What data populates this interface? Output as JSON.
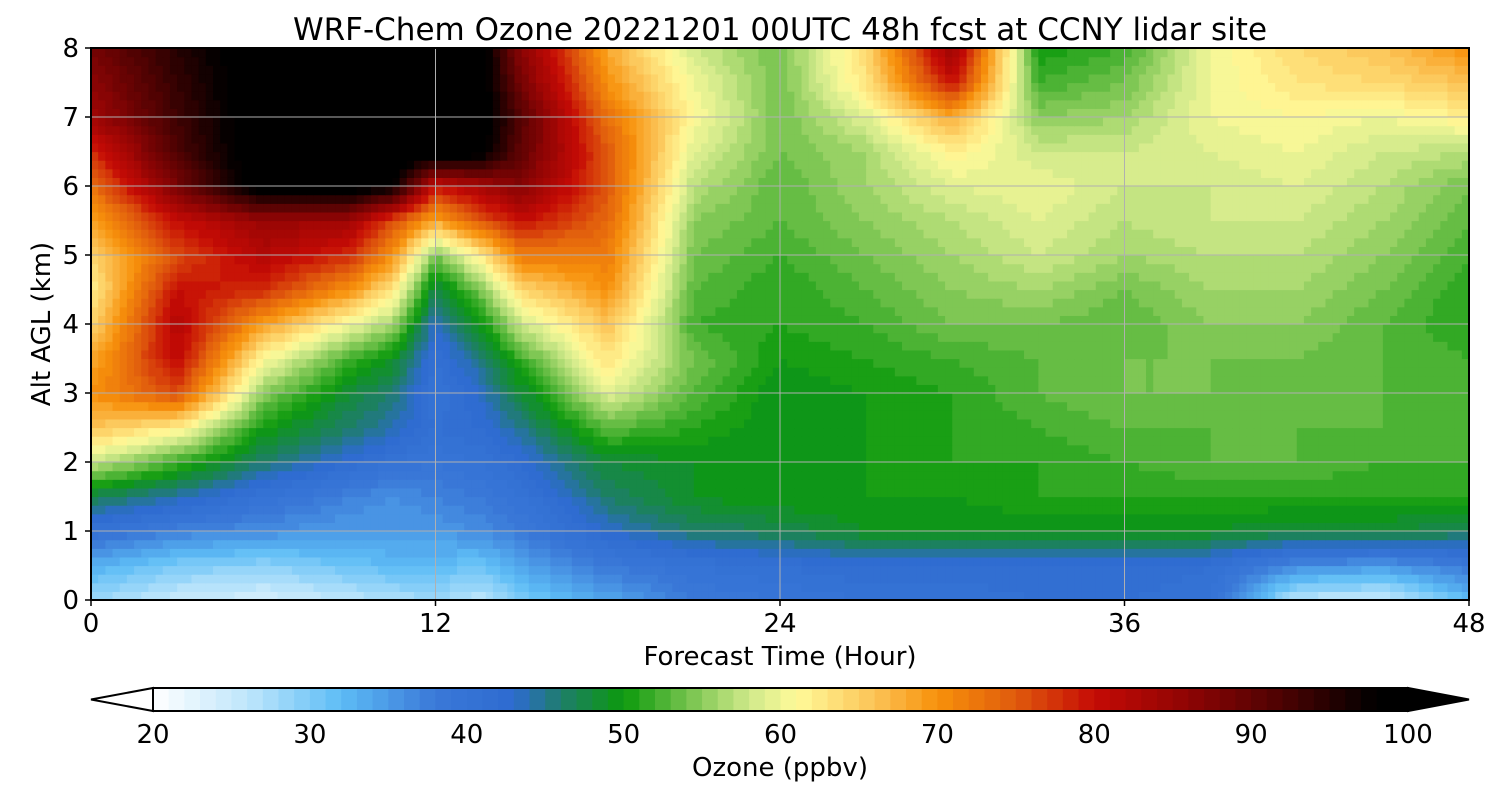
{
  "chart_data": {
    "type": "heatmap",
    "title": "WRF-Chem Ozone  20221201 00UTC 48h fcst at CCNY lidar site",
    "xlabel": "Forecast Time (Hour)",
    "ylabel": "Alt AGL (km)",
    "xlim": [
      0,
      48
    ],
    "ylim": [
      0,
      8
    ],
    "x_ticks": [
      0,
      12,
      24,
      36,
      48
    ],
    "y_ticks": [
      0,
      1,
      2,
      3,
      4,
      5,
      6,
      7,
      8
    ],
    "grid": true,
    "x": [
      0,
      3,
      6,
      9,
      10.5,
      12,
      13.5,
      15,
      18,
      21,
      24,
      27,
      30,
      33,
      36,
      39,
      42,
      45,
      48
    ],
    "y": [
      0,
      0.5,
      1,
      1.5,
      2,
      2.5,
      3,
      3.5,
      4,
      4.5,
      5,
      5.5,
      6,
      6.5,
      7,
      7.5,
      8
    ],
    "z": [
      [
        28,
        25,
        24,
        26,
        27,
        28,
        26,
        30,
        34,
        38,
        39,
        40,
        40,
        41,
        41,
        40,
        26,
        25,
        32
      ],
      [
        33,
        30,
        29,
        31,
        32,
        32,
        31,
        34,
        38,
        40,
        41,
        42,
        42,
        42,
        42,
        41,
        36,
        35,
        38
      ],
      [
        40,
        37,
        36,
        35,
        35,
        35,
        36,
        38,
        43,
        46,
        47,
        49,
        49,
        49,
        49,
        49,
        48,
        48,
        47
      ],
      [
        47,
        44,
        40,
        37,
        36,
        37,
        38,
        40,
        46,
        49,
        50,
        50,
        50,
        51,
        51,
        51,
        51,
        51,
        51
      ],
      [
        58,
        52,
        46,
        42,
        40,
        39,
        40,
        42,
        48,
        49,
        49,
        50,
        51,
        51,
        52,
        53,
        53,
        52,
        52
      ],
      [
        66,
        62,
        50,
        46,
        44,
        41,
        42,
        45,
        53,
        51,
        49,
        50,
        51,
        52,
        53,
        53,
        53,
        53,
        52
      ],
      [
        70,
        76,
        55,
        48,
        46,
        40,
        43,
        48,
        59,
        53,
        49,
        50,
        51,
        53,
        54,
        54,
        53,
        53,
        52
      ],
      [
        68,
        81,
        61,
        52,
        49,
        41,
        45,
        52,
        63,
        54,
        50,
        51,
        52,
        53,
        54,
        54,
        54,
        53,
        52
      ],
      [
        64,
        82,
        69,
        60,
        56,
        43,
        49,
        58,
        66,
        52,
        51,
        52,
        54,
        54,
        53,
        55,
        55,
        53,
        51
      ],
      [
        62,
        80,
        78,
        70,
        63,
        47,
        54,
        64,
        70,
        53,
        51,
        53,
        55,
        56,
        54,
        56,
        56,
        54,
        51
      ],
      [
        64,
        76,
        82,
        78,
        70,
        54,
        62,
        72,
        72,
        54,
        52,
        54,
        56,
        58,
        56,
        57,
        57,
        55,
        52
      ],
      [
        68,
        80,
        85,
        84,
        76,
        68,
        75,
        80,
        74,
        55,
        53,
        55,
        57,
        59,
        57,
        58,
        58,
        56,
        53
      ],
      [
        73,
        88,
        101,
        101,
        98,
        80,
        83,
        87,
        75,
        57,
        53,
        56,
        59,
        60,
        58,
        58,
        59,
        57,
        54
      ],
      [
        78,
        92,
        101,
        101,
        101,
        101,
        100,
        90,
        75,
        59,
        54,
        56,
        62,
        58,
        58,
        59,
        60,
        58,
        57
      ],
      [
        84,
        93,
        101,
        101,
        101,
        101,
        101,
        91,
        73,
        61,
        54,
        59,
        68,
        55,
        56,
        60,
        61,
        60,
        62
      ],
      [
        86,
        94,
        101,
        101,
        101,
        101,
        101,
        88,
        70,
        60,
        54,
        63,
        80,
        52,
        54,
        60,
        63,
        64,
        66
      ],
      [
        88,
        95,
        101,
        101,
        101,
        101,
        101,
        86,
        68,
        58,
        54,
        64,
        85,
        50,
        52,
        60,
        64,
        66,
        70
      ]
    ],
    "colorbar": {
      "label": "Ozone  (ppbv)",
      "min": 20,
      "max": 100,
      "step": 1,
      "extend": "both",
      "ticks": [
        20,
        30,
        40,
        50,
        60,
        70,
        80,
        90,
        100
      ]
    },
    "colormap_anchors": [
      {
        "v": 20,
        "c": "#ffffff"
      },
      {
        "v": 26,
        "c": "#bfe6fb"
      },
      {
        "v": 32,
        "c": "#5dbcf5"
      },
      {
        "v": 38,
        "c": "#3a78d8"
      },
      {
        "v": 43,
        "c": "#2e6bd0"
      },
      {
        "v": 46,
        "c": "#1e7d6b"
      },
      {
        "v": 50,
        "c": "#0c9a0c"
      },
      {
        "v": 55,
        "c": "#8ccc5c"
      },
      {
        "v": 58,
        "c": "#cfe98a"
      },
      {
        "v": 61,
        "c": "#fffa9a"
      },
      {
        "v": 66,
        "c": "#fcc356"
      },
      {
        "v": 70,
        "c": "#f7910b"
      },
      {
        "v": 75,
        "c": "#e05a0d"
      },
      {
        "v": 80,
        "c": "#c50b05"
      },
      {
        "v": 86,
        "c": "#8e0404"
      },
      {
        "v": 92,
        "c": "#4b0202"
      },
      {
        "v": 98,
        "c": "#000000"
      }
    ]
  }
}
